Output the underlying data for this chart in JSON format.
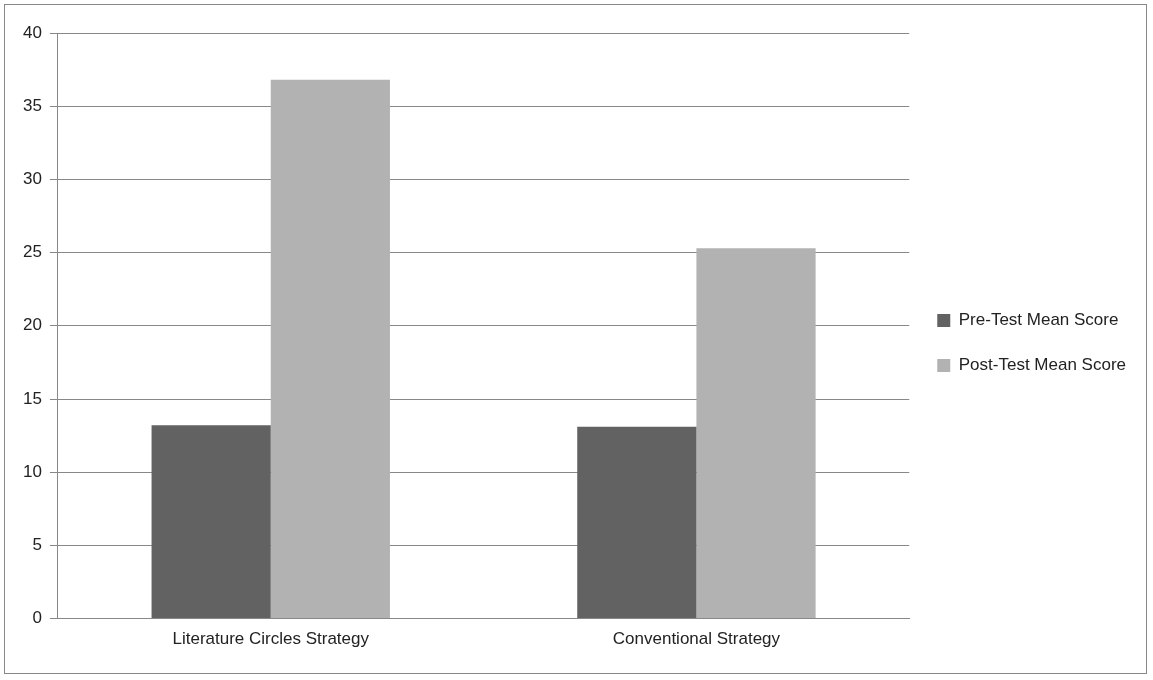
{
  "chart_data": {
    "type": "bar",
    "categories": [
      "Literature Circles Strategy",
      "Conventional Strategy"
    ],
    "series": [
      {
        "name": "Pre-Test Mean Score",
        "color": "#626262",
        "values": [
          13.2,
          13.1
        ]
      },
      {
        "name": "Post-Test Mean Score",
        "color": "#b2b2b2",
        "values": [
          36.8,
          25.3
        ]
      }
    ],
    "ylim": [
      0,
      40
    ],
    "yticks": [
      0,
      5,
      10,
      15,
      20,
      25,
      30,
      35,
      40
    ],
    "grid": "y",
    "legend": "right"
  }
}
